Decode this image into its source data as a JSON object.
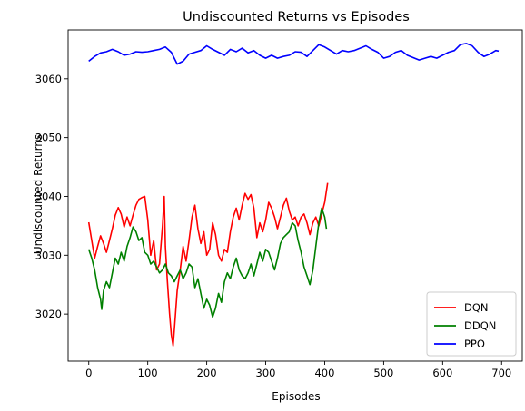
{
  "chart_data": {
    "type": "line",
    "title": "Undiscounted Returns vs Episodes",
    "xlabel": "Episodes",
    "ylabel": "Undiscounted Returns",
    "xlim": [
      -35,
      735
    ],
    "ylim": [
      3012,
      3068.3
    ],
    "xticks": [
      0,
      100,
      200,
      300,
      400,
      500,
      600,
      700
    ],
    "yticks": [
      3020,
      3030,
      3040,
      3050,
      3060
    ],
    "legend_position": "lower-right",
    "grid": false,
    "series": [
      {
        "name": "DQN",
        "color": "#ff0000",
        "points": [
          [
            0,
            3035.6
          ],
          [
            5,
            3032.5
          ],
          [
            10,
            3029.5
          ],
          [
            15,
            3031.5
          ],
          [
            20,
            3033.3
          ],
          [
            25,
            3032.0
          ],
          [
            30,
            3030.5
          ],
          [
            35,
            3032.5
          ],
          [
            40,
            3034.5
          ],
          [
            45,
            3036.8
          ],
          [
            50,
            3038.1
          ],
          [
            55,
            3037.0
          ],
          [
            60,
            3034.8
          ],
          [
            65,
            3036.5
          ],
          [
            70,
            3035.0
          ],
          [
            75,
            3036.8
          ],
          [
            80,
            3038.5
          ],
          [
            85,
            3039.5
          ],
          [
            90,
            3039.8
          ],
          [
            95,
            3040.0
          ],
          [
            100,
            3036.0
          ],
          [
            105,
            3030.0
          ],
          [
            110,
            3032.5
          ],
          [
            115,
            3027.5
          ],
          [
            120,
            3028.5
          ],
          [
            125,
            3035.0
          ],
          [
            128,
            3040.0
          ],
          [
            130,
            3031.5
          ],
          [
            133,
            3026.0
          ],
          [
            137,
            3020.0
          ],
          [
            140,
            3016.5
          ],
          [
            143,
            3014.6
          ],
          [
            146,
            3018.5
          ],
          [
            150,
            3024.0
          ],
          [
            155,
            3027.5
          ],
          [
            160,
            3031.5
          ],
          [
            165,
            3029.0
          ],
          [
            170,
            3032.5
          ],
          [
            175,
            3036.5
          ],
          [
            180,
            3038.5
          ],
          [
            185,
            3034.5
          ],
          [
            190,
            3032.0
          ],
          [
            195,
            3034.0
          ],
          [
            200,
            3030.0
          ],
          [
            205,
            3031.0
          ],
          [
            210,
            3035.5
          ],
          [
            215,
            3033.5
          ],
          [
            220,
            3030.0
          ],
          [
            225,
            3029.0
          ],
          [
            230,
            3031.0
          ],
          [
            235,
            3030.5
          ],
          [
            240,
            3034.0
          ],
          [
            245,
            3036.5
          ],
          [
            250,
            3038.0
          ],
          [
            255,
            3036.0
          ],
          [
            260,
            3038.5
          ],
          [
            265,
            3040.5
          ],
          [
            270,
            3039.5
          ],
          [
            275,
            3040.3
          ],
          [
            280,
            3038.0
          ],
          [
            285,
            3033.0
          ],
          [
            290,
            3035.5
          ],
          [
            295,
            3034.0
          ],
          [
            300,
            3036.0
          ],
          [
            305,
            3039.0
          ],
          [
            310,
            3038.0
          ],
          [
            315,
            3036.5
          ],
          [
            320,
            3034.5
          ],
          [
            325,
            3036.5
          ],
          [
            330,
            3038.5
          ],
          [
            335,
            3039.7
          ],
          [
            340,
            3037.5
          ],
          [
            345,
            3036.0
          ],
          [
            350,
            3036.5
          ],
          [
            355,
            3035.0
          ],
          [
            360,
            3036.5
          ],
          [
            365,
            3037.0
          ],
          [
            370,
            3035.5
          ],
          [
            375,
            3033.5
          ],
          [
            380,
            3035.5
          ],
          [
            385,
            3036.5
          ],
          [
            390,
            3035.0
          ],
          [
            395,
            3037.0
          ],
          [
            400,
            3039.0
          ],
          [
            405,
            3042.3
          ]
        ]
      },
      {
        "name": "DDQN",
        "color": "#008000",
        "points": [
          [
            0,
            3031.0
          ],
          [
            5,
            3029.5
          ],
          [
            10,
            3027.5
          ],
          [
            15,
            3024.5
          ],
          [
            20,
            3022.5
          ],
          [
            22,
            3020.8
          ],
          [
            25,
            3024.0
          ],
          [
            30,
            3025.5
          ],
          [
            35,
            3024.5
          ],
          [
            40,
            3027.0
          ],
          [
            45,
            3029.5
          ],
          [
            50,
            3028.5
          ],
          [
            55,
            3030.5
          ],
          [
            60,
            3029.0
          ],
          [
            65,
            3031.5
          ],
          [
            70,
            3033.0
          ],
          [
            75,
            3034.8
          ],
          [
            80,
            3034.0
          ],
          [
            85,
            3032.5
          ],
          [
            90,
            3033.0
          ],
          [
            95,
            3030.5
          ],
          [
            100,
            3030.0
          ],
          [
            105,
            3028.5
          ],
          [
            110,
            3029.0
          ],
          [
            115,
            3028.0
          ],
          [
            120,
            3027.0
          ],
          [
            125,
            3027.5
          ],
          [
            130,
            3028.5
          ],
          [
            135,
            3027.0
          ],
          [
            140,
            3026.5
          ],
          [
            145,
            3025.5
          ],
          [
            150,
            3026.5
          ],
          [
            155,
            3027.5
          ],
          [
            160,
            3026.0
          ],
          [
            165,
            3027.0
          ],
          [
            170,
            3028.5
          ],
          [
            175,
            3028.0
          ],
          [
            180,
            3024.5
          ],
          [
            185,
            3026.0
          ],
          [
            190,
            3023.5
          ],
          [
            195,
            3021.0
          ],
          [
            200,
            3022.5
          ],
          [
            205,
            3021.5
          ],
          [
            210,
            3019.5
          ],
          [
            215,
            3021.0
          ],
          [
            220,
            3023.5
          ],
          [
            225,
            3022.0
          ],
          [
            230,
            3025.5
          ],
          [
            235,
            3027.0
          ],
          [
            240,
            3026.0
          ],
          [
            245,
            3028.0
          ],
          [
            250,
            3029.5
          ],
          [
            255,
            3027.5
          ],
          [
            260,
            3026.5
          ],
          [
            265,
            3026.0
          ],
          [
            270,
            3027.0
          ],
          [
            275,
            3028.5
          ],
          [
            280,
            3026.5
          ],
          [
            285,
            3028.5
          ],
          [
            290,
            3030.5
          ],
          [
            295,
            3029.0
          ],
          [
            300,
            3031.0
          ],
          [
            305,
            3030.5
          ],
          [
            310,
            3029.0
          ],
          [
            315,
            3027.5
          ],
          [
            320,
            3029.5
          ],
          [
            325,
            3032.0
          ],
          [
            330,
            3033.0
          ],
          [
            335,
            3033.5
          ],
          [
            340,
            3034.0
          ],
          [
            345,
            3035.5
          ],
          [
            350,
            3035.0
          ],
          [
            355,
            3032.5
          ],
          [
            360,
            3030.5
          ],
          [
            365,
            3028.0
          ],
          [
            370,
            3026.5
          ],
          [
            375,
            3025.0
          ],
          [
            380,
            3027.5
          ],
          [
            385,
            3031.5
          ],
          [
            390,
            3035.5
          ],
          [
            395,
            3038.0
          ],
          [
            400,
            3036.5
          ],
          [
            403,
            3034.5
          ]
        ]
      },
      {
        "name": "PPO",
        "color": "#0000ff",
        "points": [
          [
            0,
            3063.0
          ],
          [
            10,
            3063.8
          ],
          [
            20,
            3064.4
          ],
          [
            30,
            3064.6
          ],
          [
            40,
            3065.0
          ],
          [
            50,
            3064.6
          ],
          [
            60,
            3064.0
          ],
          [
            70,
            3064.2
          ],
          [
            80,
            3064.6
          ],
          [
            90,
            3064.5
          ],
          [
            100,
            3064.6
          ],
          [
            110,
            3064.8
          ],
          [
            120,
            3065.0
          ],
          [
            130,
            3065.4
          ],
          [
            140,
            3064.5
          ],
          [
            150,
            3062.5
          ],
          [
            160,
            3063.0
          ],
          [
            170,
            3064.2
          ],
          [
            180,
            3064.5
          ],
          [
            190,
            3064.8
          ],
          [
            200,
            3065.6
          ],
          [
            210,
            3065.0
          ],
          [
            220,
            3064.5
          ],
          [
            230,
            3064.0
          ],
          [
            240,
            3065.0
          ],
          [
            250,
            3064.6
          ],
          [
            260,
            3065.2
          ],
          [
            270,
            3064.4
          ],
          [
            280,
            3064.8
          ],
          [
            290,
            3064.0
          ],
          [
            300,
            3063.5
          ],
          [
            310,
            3064.0
          ],
          [
            320,
            3063.5
          ],
          [
            330,
            3063.8
          ],
          [
            340,
            3064.0
          ],
          [
            350,
            3064.6
          ],
          [
            360,
            3064.5
          ],
          [
            370,
            3063.8
          ],
          [
            380,
            3064.8
          ],
          [
            390,
            3065.8
          ],
          [
            400,
            3065.4
          ],
          [
            410,
            3064.8
          ],
          [
            420,
            3064.2
          ],
          [
            430,
            3064.8
          ],
          [
            440,
            3064.6
          ],
          [
            450,
            3064.8
          ],
          [
            460,
            3065.2
          ],
          [
            470,
            3065.6
          ],
          [
            480,
            3065.0
          ],
          [
            490,
            3064.5
          ],
          [
            500,
            3063.5
          ],
          [
            510,
            3063.8
          ],
          [
            520,
            3064.5
          ],
          [
            530,
            3064.8
          ],
          [
            540,
            3064.0
          ],
          [
            550,
            3063.6
          ],
          [
            560,
            3063.2
          ],
          [
            570,
            3063.5
          ],
          [
            580,
            3063.8
          ],
          [
            590,
            3063.5
          ],
          [
            600,
            3064.0
          ],
          [
            610,
            3064.5
          ],
          [
            620,
            3064.8
          ],
          [
            630,
            3065.8
          ],
          [
            640,
            3066.0
          ],
          [
            650,
            3065.6
          ],
          [
            660,
            3064.5
          ],
          [
            670,
            3063.8
          ],
          [
            680,
            3064.2
          ],
          [
            690,
            3064.8
          ],
          [
            695,
            3064.7
          ]
        ]
      }
    ]
  }
}
